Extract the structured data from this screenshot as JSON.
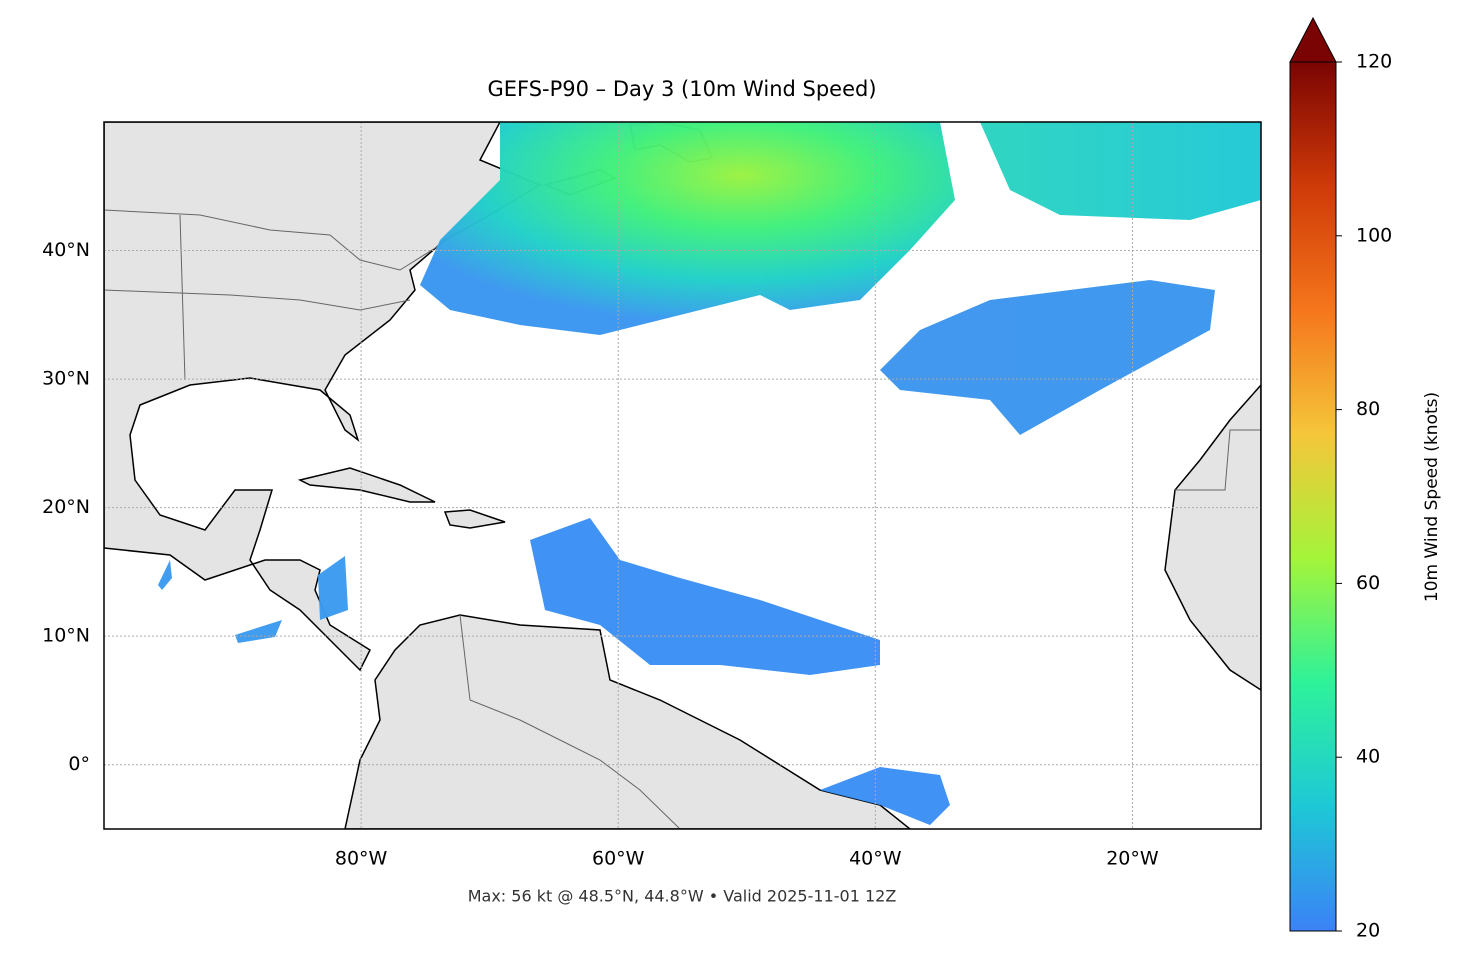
{
  "chart_data": {
    "type": "map",
    "title": "GEFS-P90 – Day 3 (10m Wind Speed)",
    "annotation": "Max: 56 kt @ 48.5°N, 44.8°W • Valid 2025-11-01 12Z",
    "xlim": [
      -100,
      -10
    ],
    "ylim": [
      -5,
      50
    ],
    "xticks": [
      {
        "value": -80,
        "label": "80°W"
      },
      {
        "value": -60,
        "label": "60°W"
      },
      {
        "value": -40,
        "label": "40°W"
      },
      {
        "value": -20,
        "label": "20°W"
      }
    ],
    "yticks": [
      {
        "value": 0,
        "label": "0°"
      },
      {
        "value": 10,
        "label": "10°N"
      },
      {
        "value": 20,
        "label": "20°N"
      },
      {
        "value": 30,
        "label": "30°N"
      },
      {
        "value": 40,
        "label": "40°N"
      }
    ],
    "grid": true,
    "colorbar": {
      "label": "10m Wind Speed (knots)",
      "lim": [
        20,
        120
      ],
      "ticks": [
        20,
        40,
        60,
        80,
        100,
        120
      ],
      "colors": [
        "#3b82f6",
        "#1ec8d6",
        "#2ef29a",
        "#a4f43a",
        "#f5c63a",
        "#f5761c",
        "#cf3a08",
        "#7a0403"
      ]
    }
  }
}
